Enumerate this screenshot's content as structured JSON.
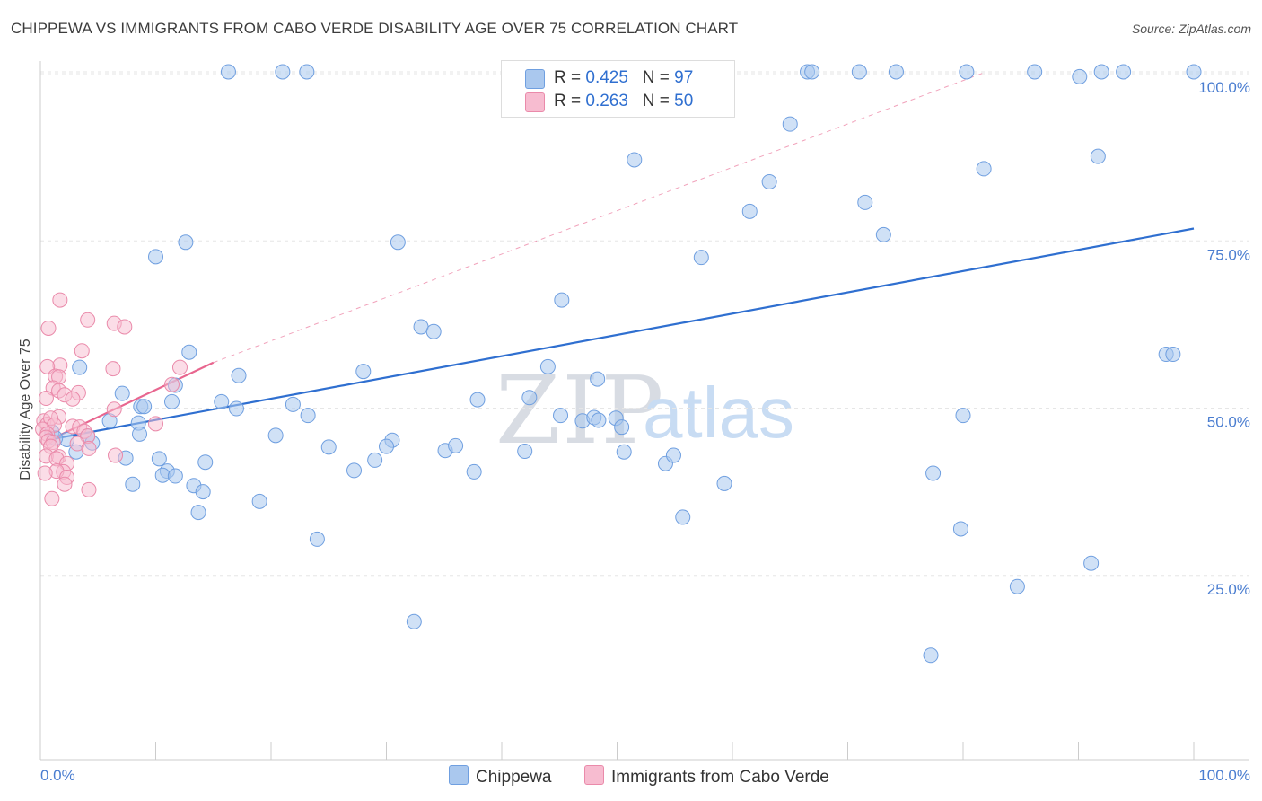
{
  "title": "CHIPPEWA VS IMMIGRANTS FROM CABO VERDE DISABILITY AGE OVER 75 CORRELATION CHART",
  "source": "Source: ZipAtlas.com",
  "watermark": {
    "zip": "ZIP",
    "atlas": "atlas"
  },
  "legend": {
    "rows": [
      {
        "r_label": "R = ",
        "r_value": "0.425",
        "n_label": "N = ",
        "n_value": "97"
      },
      {
        "r_label": "R = ",
        "r_value": "0.263",
        "n_label": "N = ",
        "n_value": "50"
      }
    ]
  },
  "bottom_legend": [
    "Chippewa",
    "Immigrants from Cabo Verde"
  ],
  "colors": {
    "blue_fill": "#aac8ee",
    "blue_stroke": "#6f9fe0",
    "blue_line": "#2f6fd0",
    "pink_fill": "#f7bcd0",
    "pink_stroke": "#ea8aaa",
    "pink_line": "#e8668f",
    "grid": "#e6e6e6",
    "tick_text": "#4a7dd0"
  },
  "chart_data": {
    "type": "scatter",
    "title": "CHIPPEWA VS IMMIGRANTS FROM CABO VERDE DISABILITY AGE OVER 75 CORRELATION CHART",
    "xlabel": "",
    "ylabel": "Disability Age Over 75",
    "xlim": [
      0,
      100
    ],
    "ylim": [
      0,
      105
    ],
    "x_tick_labels": [
      {
        "value": 0,
        "label": "0.0%"
      },
      {
        "value": 100,
        "label": "100.0%"
      }
    ],
    "y_tick_labels": [
      {
        "value": 25,
        "label": "25.0%"
      },
      {
        "value": 50,
        "label": "50.0%"
      },
      {
        "value": 75,
        "label": "75.0%"
      },
      {
        "value": 100,
        "label": "100.0%"
      }
    ],
    "series": [
      {
        "name": "Chippewa",
        "R": 0.425,
        "N": 97,
        "trend": {
          "x0": 0.5,
          "y0": 46.4,
          "x1": 100,
          "y1": 77.2
        },
        "points": [
          [
            16.3,
            100
          ],
          [
            21.0,
            100
          ],
          [
            23.1,
            100
          ],
          [
            66.5,
            100
          ],
          [
            66.9,
            100
          ],
          [
            71.0,
            100
          ],
          [
            74.2,
            100
          ],
          [
            80.3,
            100
          ],
          [
            86.2,
            100
          ],
          [
            90.1,
            99.3
          ],
          [
            92.0,
            100
          ],
          [
            93.9,
            100
          ],
          [
            100,
            100
          ],
          [
            65.0,
            92.4
          ],
          [
            51.5,
            87.2
          ],
          [
            91.7,
            87.7
          ],
          [
            81.8,
            85.9
          ],
          [
            63.2,
            84.0
          ],
          [
            61.5,
            79.7
          ],
          [
            71.5,
            81.0
          ],
          [
            73.1,
            76.3
          ],
          [
            12.6,
            75.2
          ],
          [
            31.0,
            75.2
          ],
          [
            10.0,
            73.1
          ],
          [
            57.3,
            73.0
          ],
          [
            45.2,
            66.8
          ],
          [
            33.0,
            62.9
          ],
          [
            34.1,
            62.2
          ],
          [
            97.6,
            58.9
          ],
          [
            98.2,
            58.9
          ],
          [
            12.9,
            59.2
          ],
          [
            3.4,
            57.0
          ],
          [
            17.2,
            55.8
          ],
          [
            28.0,
            56.4
          ],
          [
            44.0,
            57.1
          ],
          [
            48.3,
            55.3
          ],
          [
            11.7,
            54.4
          ],
          [
            7.1,
            53.2
          ],
          [
            15.7,
            52.0
          ],
          [
            8.7,
            51.3
          ],
          [
            9.0,
            51.3
          ],
          [
            21.9,
            51.6
          ],
          [
            37.9,
            52.3
          ],
          [
            45.1,
            50.0
          ],
          [
            42.4,
            52.6
          ],
          [
            17.0,
            51.0
          ],
          [
            11.4,
            52.0
          ],
          [
            6.0,
            49.2
          ],
          [
            23.2,
            50.0
          ],
          [
            47.0,
            49.2
          ],
          [
            48.0,
            49.7
          ],
          [
            48.4,
            49.3
          ],
          [
            49.9,
            49.6
          ],
          [
            50.4,
            48.3
          ],
          [
            80.0,
            50.0
          ],
          [
            8.5,
            48.9
          ],
          [
            1.0,
            47.6
          ],
          [
            2.3,
            46.5
          ],
          [
            1.3,
            46.7
          ],
          [
            4.1,
            47.0
          ],
          [
            4.5,
            46.0
          ],
          [
            8.6,
            47.3
          ],
          [
            20.4,
            47.1
          ],
          [
            25.0,
            45.4
          ],
          [
            30.5,
            46.4
          ],
          [
            30.0,
            45.5
          ],
          [
            35.1,
            44.9
          ],
          [
            36.0,
            45.6
          ],
          [
            42.0,
            44.8
          ],
          [
            50.6,
            44.7
          ],
          [
            54.2,
            43.0
          ],
          [
            54.9,
            44.2
          ],
          [
            3.1,
            44.7
          ],
          [
            7.4,
            43.8
          ],
          [
            10.3,
            43.7
          ],
          [
            11.0,
            41.9
          ],
          [
            14.3,
            43.2
          ],
          [
            29.0,
            43.5
          ],
          [
            10.6,
            41.3
          ],
          [
            11.7,
            41.2
          ],
          [
            27.2,
            42.0
          ],
          [
            37.6,
            41.8
          ],
          [
            13.3,
            39.8
          ],
          [
            14.1,
            38.9
          ],
          [
            8.0,
            40.0
          ],
          [
            59.3,
            40.1
          ],
          [
            77.4,
            41.6
          ],
          [
            19.0,
            37.5
          ],
          [
            13.7,
            35.9
          ],
          [
            55.7,
            35.2
          ],
          [
            79.8,
            33.5
          ],
          [
            24.0,
            32.0
          ],
          [
            91.1,
            28.5
          ],
          [
            84.7,
            25.1
          ],
          [
            32.4,
            20.0
          ],
          [
            77.2,
            15.1
          ]
        ]
      },
      {
        "name": "Immigrants from Cabo Verde",
        "R": 0.263,
        "N": 50,
        "trend": {
          "x0": 0.5,
          "y0": 46.2,
          "x1": 15.0,
          "y1": 57.7
        },
        "dashed_extension": {
          "x0": 15.0,
          "y0": 57.7,
          "x1": 82.0,
          "y1": 100.0
        },
        "points": [
          [
            1.7,
            66.8
          ],
          [
            4.1,
            63.9
          ],
          [
            6.4,
            63.4
          ],
          [
            7.3,
            62.9
          ],
          [
            0.7,
            62.7
          ],
          [
            3.6,
            59.4
          ],
          [
            1.7,
            57.3
          ],
          [
            6.3,
            56.8
          ],
          [
            12.1,
            57.0
          ],
          [
            0.6,
            57.1
          ],
          [
            1.3,
            55.7
          ],
          [
            1.6,
            55.6
          ],
          [
            1.1,
            54.0
          ],
          [
            1.6,
            53.6
          ],
          [
            3.3,
            53.3
          ],
          [
            2.1,
            53.0
          ],
          [
            11.4,
            54.5
          ],
          [
            2.8,
            52.4
          ],
          [
            0.5,
            52.5
          ],
          [
            6.4,
            50.9
          ],
          [
            1.6,
            49.8
          ],
          [
            0.3,
            49.2
          ],
          [
            0.6,
            48.7
          ],
          [
            0.9,
            49.6
          ],
          [
            1.2,
            48.6
          ],
          [
            2.8,
            48.4
          ],
          [
            10.0,
            48.8
          ],
          [
            0.2,
            48.0
          ],
          [
            0.6,
            47.3
          ],
          [
            3.4,
            48.3
          ],
          [
            3.8,
            47.7
          ],
          [
            4.1,
            47.0
          ],
          [
            0.5,
            46.8
          ],
          [
            0.7,
            46.3
          ],
          [
            1.1,
            46.1
          ],
          [
            0.9,
            45.5
          ],
          [
            3.2,
            45.9
          ],
          [
            4.2,
            45.2
          ],
          [
            0.5,
            44.1
          ],
          [
            1.6,
            44.0
          ],
          [
            1.4,
            43.7
          ],
          [
            6.5,
            44.2
          ],
          [
            2.3,
            43.0
          ],
          [
            2.0,
            41.8
          ],
          [
            1.4,
            41.9
          ],
          [
            0.4,
            41.6
          ],
          [
            2.3,
            41.0
          ],
          [
            2.1,
            40.0
          ],
          [
            4.2,
            39.2
          ],
          [
            1.0,
            37.9
          ]
        ]
      }
    ]
  }
}
